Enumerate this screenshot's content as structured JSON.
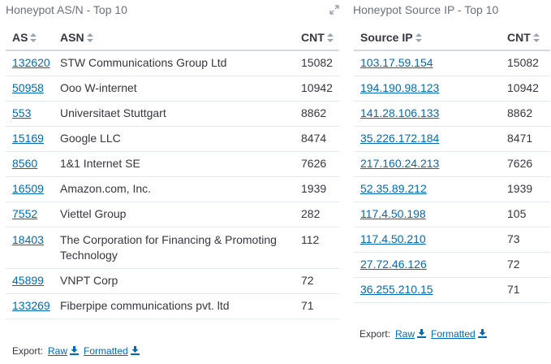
{
  "asn_panel": {
    "title": "Honeypot AS/N - Top 10",
    "columns": [
      "AS",
      "ASN",
      "CNT"
    ],
    "rows": [
      {
        "as": "132620",
        "asn": "STW Communications Group Ltd",
        "cnt": "15082"
      },
      {
        "as": "50958",
        "asn": "Ooo W-internet",
        "cnt": "10942"
      },
      {
        "as": "553",
        "asn": "Universitaet Stuttgart",
        "cnt": "8862"
      },
      {
        "as": "15169",
        "asn": "Google LLC",
        "cnt": "8474"
      },
      {
        "as": "8560",
        "asn": "1&1 Internet SE",
        "cnt": "7626"
      },
      {
        "as": "16509",
        "asn": "Amazon.com, Inc.",
        "cnt": "1939"
      },
      {
        "as": "7552",
        "asn": "Viettel Group",
        "cnt": "282"
      },
      {
        "as": "18403",
        "asn": "The Corporation for Financing & Promoting Technology",
        "cnt": "112"
      },
      {
        "as": "45899",
        "asn": "VNPT Corp",
        "cnt": "72"
      },
      {
        "as": "133269",
        "asn": "Fiberpipe communications pvt. ltd",
        "cnt": "71"
      }
    ],
    "export": {
      "label": "Export:",
      "raw": "Raw",
      "formatted": "Formatted"
    }
  },
  "ip_panel": {
    "title": "Honeypot Source IP - Top 10",
    "columns": [
      "Source IP",
      "CNT"
    ],
    "rows": [
      {
        "ip": "103.17.59.154",
        "cnt": "15082"
      },
      {
        "ip": "194.190.98.123",
        "cnt": "10942"
      },
      {
        "ip": "141.28.106.133",
        "cnt": "8862"
      },
      {
        "ip": "35.226.172.184",
        "cnt": "8471"
      },
      {
        "ip": "217.160.24.213",
        "cnt": "7626"
      },
      {
        "ip": "52.35.89.212",
        "cnt": "1939"
      },
      {
        "ip": "117.4.50.198",
        "cnt": "105"
      },
      {
        "ip": "117.4.50.210",
        "cnt": "73"
      },
      {
        "ip": "27.72.46.126",
        "cnt": "72"
      },
      {
        "ip": "36.255.210.15",
        "cnt": "71"
      }
    ],
    "export": {
      "label": "Export:",
      "raw": "Raw",
      "formatted": "Formatted"
    }
  },
  "icons": {
    "expand": "expand-icon",
    "sort": "sort-icon",
    "download": "download-icon"
  },
  "colors": {
    "link": "#006bb4",
    "title": "#6a717d",
    "text": "#343741"
  }
}
